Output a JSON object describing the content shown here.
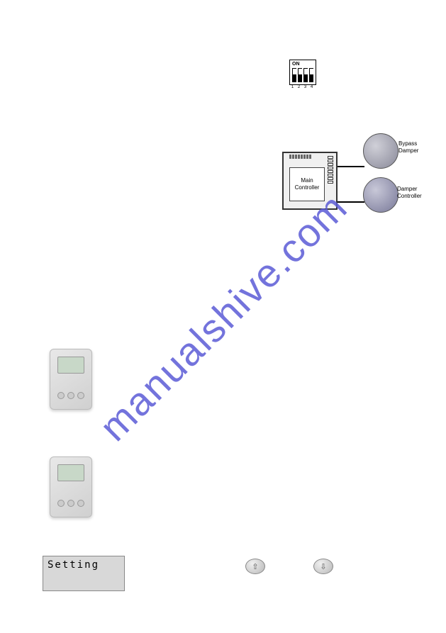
{
  "watermark": {
    "text": "manualshive.com",
    "color": "#5b5bd6",
    "fontsize": 56
  },
  "dip_switch": {
    "label": "ON",
    "positions": [
      "up",
      "up",
      "up",
      "up"
    ],
    "numbers": [
      "1",
      "2",
      "3",
      "4"
    ],
    "border_color": "#000000",
    "bg_color": "#ffffff"
  },
  "circuit": {
    "main_label": "Main\nController",
    "bypass_label": "Bypass\nDamper",
    "damper_ctrl_label": "Damper\nController",
    "box_border": "#333333",
    "box_bg": "#f0f0f0",
    "damper_color_light": "#d0d0d8",
    "damper_color_dark": "#888898",
    "label_fontsize": 8
  },
  "thermostats": [
    {
      "id": "thermostat-1",
      "screen_color": "#c8d8c8"
    },
    {
      "id": "thermostat-2",
      "screen_color": "#c8d8c8"
    }
  ],
  "setting_box": {
    "text": "Setting",
    "bg_color": "#d8d8d8",
    "font": "monospace",
    "fontsize": 14
  },
  "arrows": {
    "up_glyph": "⇧",
    "down_glyph": "⇩",
    "bg_light": "#f0f0f0",
    "bg_dark": "#b8b8b8"
  }
}
